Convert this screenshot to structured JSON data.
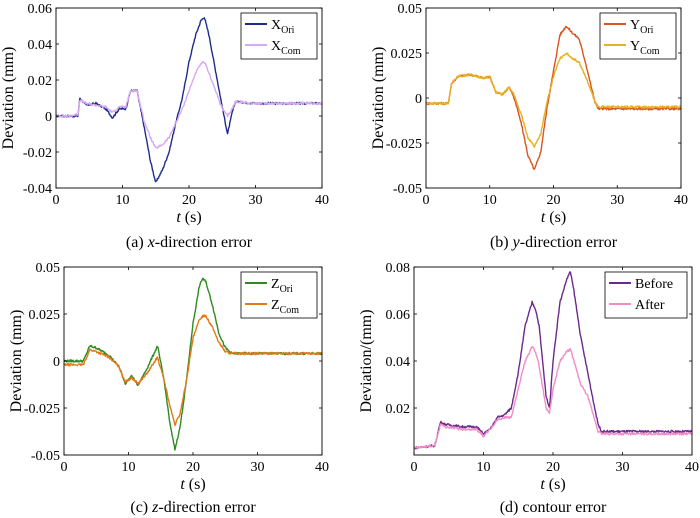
{
  "chart_data": [
    {
      "type": "line",
      "caption_prefix": "(a) ",
      "caption_italic": "x",
      "caption_suffix": "-direction error",
      "xlabel_italic": "t",
      "xlabel_unit": " (s)",
      "ylabel": "Deviation (mm)",
      "xlim": [
        0,
        40
      ],
      "ylim": [
        -0.04,
        0.06
      ],
      "xticks": [
        0,
        10,
        20,
        30,
        40
      ],
      "yticks": [
        -0.04,
        -0.02,
        0,
        0.02,
        0.04,
        0.06
      ],
      "ytick_labels": [
        "-0.04",
        "-0.02",
        "0",
        "0.02",
        "0.04",
        "0.06"
      ],
      "legend_position": "top-right",
      "series": [
        {
          "name": "X",
          "sub": "Ori",
          "color": "#1f2d8a",
          "x": [
            0,
            2,
            3.3,
            3.6,
            4.5,
            6,
            7.5,
            8.5,
            9.5,
            10.5,
            11.2,
            11.6,
            12.2,
            13.2,
            14.2,
            15,
            16,
            17,
            18,
            19,
            20,
            21,
            21.8,
            22.3,
            23,
            24,
            25,
            25.8,
            26.5,
            27,
            30,
            35,
            40
          ],
          "y": [
            0,
            0,
            0,
            0.01,
            0.006,
            0.007,
            0.004,
            -0.001,
            0.004,
            0.004,
            0.014,
            0.014,
            0.014,
            -0.005,
            -0.025,
            -0.037,
            -0.03,
            -0.02,
            -0.004,
            0.01,
            0.03,
            0.045,
            0.053,
            0.055,
            0.045,
            0.025,
            0.005,
            -0.01,
            0.002,
            0.008,
            0.007,
            0.007,
            0.007
          ]
        },
        {
          "name": "X",
          "sub": "Com",
          "color": "#d8a8f0",
          "x": [
            0,
            2,
            3.3,
            3.6,
            4.5,
            6,
            7.5,
            8.5,
            9.5,
            10.5,
            11.2,
            11.6,
            12.2,
            13.2,
            14.2,
            15,
            16,
            17,
            18,
            19,
            20,
            21,
            21.8,
            22.3,
            23,
            24,
            25,
            25.8,
            26.5,
            27,
            30,
            35,
            40
          ],
          "y": [
            0,
            0,
            0.001,
            0.009,
            0.007,
            0.006,
            0.005,
            0.002,
            0.005,
            0.005,
            0.014,
            0.014,
            0.014,
            -0.002,
            -0.012,
            -0.018,
            -0.016,
            -0.012,
            -0.004,
            0.004,
            0.014,
            0.024,
            0.029,
            0.03,
            0.024,
            0.014,
            0.004,
            0,
            0.004,
            0.008,
            0.007,
            0.007,
            0.007
          ]
        }
      ]
    },
    {
      "type": "line",
      "caption_prefix": "(b) ",
      "caption_italic": "y",
      "caption_suffix": "-direction error",
      "xlabel_italic": "t",
      "xlabel_unit": " (s)",
      "ylabel": "Deviation (mm)",
      "xlim": [
        0,
        40
      ],
      "ylim": [
        -0.05,
        0.05
      ],
      "xticks": [
        0,
        10,
        20,
        30,
        40
      ],
      "yticks": [
        -0.05,
        -0.025,
        0,
        0.025,
        0.05
      ],
      "ytick_labels": [
        "-0.05",
        "-0.025",
        "0",
        "0.025",
        "0.05"
      ],
      "legend_position": "top-right",
      "series": [
        {
          "name": "Y",
          "sub": "Ori",
          "color": "#d9541e",
          "x": [
            0,
            3.5,
            4,
            5,
            7,
            9,
            10,
            11,
            12,
            13,
            13.5,
            14,
            15,
            16,
            17,
            18,
            19,
            19.5,
            20,
            21,
            22,
            23,
            24,
            25,
            26,
            26.5,
            27,
            30,
            35,
            40
          ],
          "y": [
            -0.003,
            -0.003,
            0.008,
            0.012,
            0.013,
            0.011,
            0.012,
            0.003,
            0.002,
            0.006,
            0.003,
            -0.002,
            -0.015,
            -0.032,
            -0.04,
            -0.03,
            -0.005,
            0.005,
            0.015,
            0.035,
            0.04,
            0.036,
            0.033,
            0.02,
            0.005,
            -0.002,
            -0.006,
            -0.006,
            -0.006,
            -0.006
          ]
        },
        {
          "name": "Y",
          "sub": "Com",
          "color": "#e8b020",
          "x": [
            0,
            3.5,
            4,
            5,
            7,
            9,
            10,
            11,
            12,
            13,
            13.5,
            14,
            15,
            16,
            17,
            18,
            19,
            19.5,
            20,
            21,
            22,
            23,
            24,
            25,
            26,
            26.5,
            27,
            30,
            35,
            40
          ],
          "y": [
            -0.003,
            -0.003,
            0.008,
            0.012,
            0.013,
            0.011,
            0.012,
            0.003,
            0.002,
            0.006,
            0.004,
            0,
            -0.01,
            -0.022,
            -0.027,
            -0.02,
            -0.002,
            0.005,
            0.012,
            0.022,
            0.025,
            0.022,
            0.02,
            0.012,
            0.003,
            -0.002,
            -0.005,
            -0.005,
            -0.005,
            -0.005
          ]
        }
      ]
    },
    {
      "type": "line",
      "caption_prefix": "(c) ",
      "caption_italic": "z",
      "caption_suffix": "-direction error",
      "xlabel_italic": "t",
      "xlabel_unit": " (s)",
      "ylabel": "Deviation (mm)",
      "xlim": [
        0,
        40
      ],
      "ylim": [
        -0.05,
        0.05
      ],
      "xticks": [
        0,
        10,
        20,
        30,
        40
      ],
      "yticks": [
        -0.05,
        -0.025,
        0,
        0.025,
        0.05
      ],
      "ytick_labels": [
        "-0.05",
        "-0.025",
        "0",
        "0.025",
        "0.05"
      ],
      "legend_position": "top-right",
      "series": [
        {
          "name": "Z",
          "sub": "Ori",
          "color": "#2e8b22",
          "x": [
            0,
            3,
            4,
            5,
            7,
            8.5,
            9.5,
            10.5,
            11.5,
            13,
            14.5,
            15.5,
            16.5,
            17.2,
            18,
            19,
            20,
            21,
            21.5,
            22,
            23,
            24,
            25,
            26,
            27,
            30,
            35,
            40
          ],
          "y": [
            0,
            0,
            0.008,
            0.007,
            0.003,
            -0.003,
            -0.012,
            -0.008,
            -0.013,
            -0.003,
            0.008,
            -0.01,
            -0.035,
            -0.047,
            -0.035,
            -0.01,
            0.02,
            0.04,
            0.044,
            0.042,
            0.03,
            0.015,
            0.007,
            0.004,
            0.004,
            0.004,
            0.004,
            0.004
          ]
        },
        {
          "name": "Z",
          "sub": "Com",
          "color": "#e07a18",
          "x": [
            0,
            3,
            4,
            5,
            7,
            8.5,
            9.5,
            10.5,
            11.5,
            13,
            14.5,
            15.5,
            16.5,
            17.2,
            18,
            19,
            20,
            21,
            21.5,
            22,
            23,
            24,
            25,
            26,
            27,
            30,
            35,
            40
          ],
          "y": [
            -0.002,
            -0.002,
            0.006,
            0.005,
            0.002,
            -0.003,
            -0.011,
            -0.009,
            -0.012,
            -0.006,
            0.002,
            -0.01,
            -0.025,
            -0.034,
            -0.028,
            -0.01,
            0.012,
            0.022,
            0.024,
            0.024,
            0.018,
            0.01,
            0.005,
            0.004,
            0.004,
            0.004,
            0.004,
            0.004
          ]
        }
      ]
    },
    {
      "type": "line",
      "caption_prefix": "(d) ",
      "caption_italic": "",
      "caption_suffix": "contour error",
      "xlabel_italic": "t",
      "xlabel_unit": " (s)",
      "ylabel": "Deviation/(mm)",
      "xlim": [
        0,
        40
      ],
      "ylim": [
        0,
        0.08
      ],
      "xticks": [
        0,
        10,
        20,
        30,
        40
      ],
      "yticks": [
        0.02,
        0.04,
        0.06,
        0.08
      ],
      "ytick_labels": [
        "0.02",
        "0.04",
        "0.06",
        "0.08"
      ],
      "legend_position": "top-right",
      "series": [
        {
          "name": "Before",
          "sub": "",
          "color": "#6b2a8c",
          "x": [
            0,
            3,
            3.8,
            4.5,
            7,
            9,
            10,
            11,
            12,
            13,
            14,
            15,
            16,
            17,
            17.5,
            18,
            19,
            19.5,
            20,
            21,
            22,
            22.5,
            23,
            24,
            25,
            26,
            26.5,
            27,
            30,
            35,
            40
          ],
          "y": [
            0.003,
            0.004,
            0.014,
            0.013,
            0.012,
            0.012,
            0.009,
            0.011,
            0.016,
            0.017,
            0.02,
            0.035,
            0.055,
            0.065,
            0.062,
            0.055,
            0.025,
            0.02,
            0.04,
            0.065,
            0.075,
            0.078,
            0.07,
            0.05,
            0.035,
            0.02,
            0.013,
            0.01,
            0.01,
            0.01,
            0.01
          ]
        },
        {
          "name": "After",
          "sub": "",
          "color": "#f08cc8",
          "x": [
            0,
            3,
            3.8,
            4.5,
            7,
            9,
            10,
            11,
            12,
            13,
            14,
            15,
            16,
            17,
            17.5,
            18,
            19,
            19.5,
            20,
            21,
            22,
            22.5,
            23,
            24,
            25,
            26,
            26.5,
            27,
            30,
            35,
            40
          ],
          "y": [
            0.003,
            0.004,
            0.013,
            0.012,
            0.011,
            0.011,
            0.008,
            0.011,
            0.015,
            0.016,
            0.016,
            0.028,
            0.04,
            0.046,
            0.044,
            0.038,
            0.02,
            0.018,
            0.028,
            0.04,
            0.044,
            0.045,
            0.04,
            0.03,
            0.025,
            0.015,
            0.01,
            0.009,
            0.009,
            0.009,
            0.009
          ]
        }
      ]
    }
  ]
}
